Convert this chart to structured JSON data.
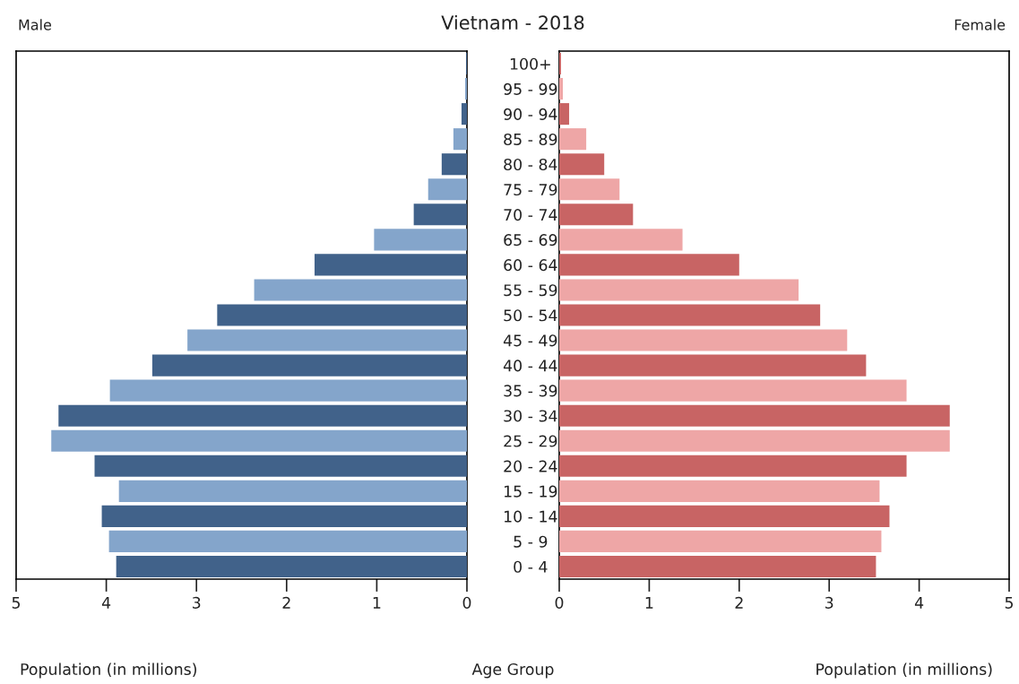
{
  "chart_data": [
    {
      "type": "bar",
      "orientation": "horizontal",
      "title": "Vietnam - 2018",
      "subtitle": "Male",
      "xlabel": "Population (in millions)",
      "ylabel": "Age Group",
      "categories": [
        "100+",
        "95 - 99",
        "90 - 94",
        "85 - 89",
        "80 - 84",
        "75 - 79",
        "70 - 74",
        "65 - 69",
        "60 - 64",
        "55 - 59",
        "50 - 54",
        "45 - 49",
        "40 - 44",
        "35 - 39",
        "30 - 34",
        "25 - 29",
        "20 - 24",
        "15 - 19",
        "10 - 14",
        "5 - 9",
        "0 - 4"
      ],
      "values": [
        0.01,
        0.02,
        0.06,
        0.15,
        0.28,
        0.43,
        0.59,
        1.03,
        1.69,
        2.36,
        2.77,
        3.1,
        3.49,
        3.96,
        4.53,
        4.61,
        4.13,
        3.86,
        4.05,
        3.97,
        3.89
      ],
      "colors": [
        "#41628a",
        "#84a5cb",
        "#41628a",
        "#84a5cb",
        "#41628a",
        "#84a5cb",
        "#41628a",
        "#84a5cb",
        "#41628a",
        "#84a5cb",
        "#41628a",
        "#84a5cb",
        "#41628a",
        "#84a5cb",
        "#41628a",
        "#84a5cb",
        "#41628a",
        "#84a5cb",
        "#41628a",
        "#84a5cb",
        "#41628a"
      ],
      "xlim": [
        5,
        0
      ],
      "xticks": [
        5,
        4,
        3,
        2,
        1,
        0
      ],
      "grid": false,
      "legend": false
    },
    {
      "type": "bar",
      "orientation": "horizontal",
      "subtitle": "Female",
      "xlabel": "Population (in millions)",
      "categories": [
        null,
        null,
        null,
        null,
        null,
        null,
        null,
        null,
        null,
        null,
        null,
        null,
        null,
        null,
        null,
        null,
        null,
        null,
        null,
        null,
        null
      ],
      "values": [
        0.02,
        0.04,
        0.11,
        0.3,
        0.5,
        0.67,
        0.82,
        1.37,
        2.0,
        2.66,
        2.9,
        3.2,
        3.41,
        3.86,
        4.34,
        4.34,
        3.86,
        3.56,
        3.67,
        3.58,
        3.52
      ],
      "colors": [
        "#c86464",
        "#eea6a6",
        "#c86464",
        "#eea6a6",
        "#c86464",
        "#eea6a6",
        "#c86464",
        "#eea6a6",
        "#c86464",
        "#eea6a6",
        "#c86464",
        "#eea6a6",
        "#c86464",
        "#eea6a6",
        "#c86464",
        "#eea6a6",
        "#c86464",
        "#eea6a6",
        "#c86464",
        "#eea6a6",
        "#c86464"
      ],
      "xlim": [
        0,
        5
      ],
      "xticks": [
        0,
        1,
        2,
        3,
        4,
        5
      ],
      "tick_labels": "x",
      "grid": false,
      "legend": false
    }
  ]
}
